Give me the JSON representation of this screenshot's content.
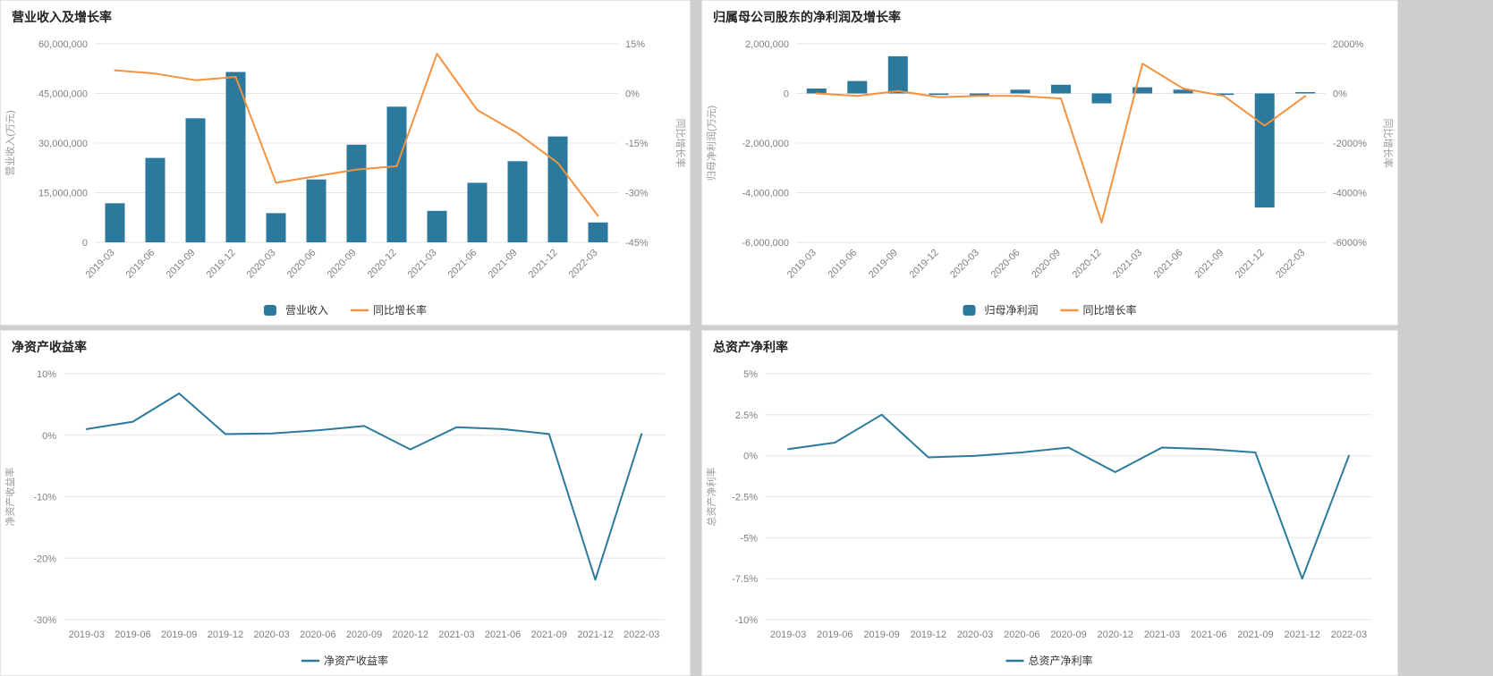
{
  "colors": {
    "bar_blue": "#2b7a9d",
    "line_orange": "#f5923f",
    "line_blue": "#2b7a9d",
    "grid": "#e6e6e6",
    "tick": "#7f7f7f",
    "axis_name": "#999999",
    "title": "#222222",
    "legend_text": "#333333",
    "panel_bg": "#ffffff",
    "page_bg": "#cfcfcf"
  },
  "chart_data": [
    {
      "type": "bar+line",
      "title": "营业收入及增长率",
      "legend_position": "bottom",
      "rotate_x_labels": true,
      "categories": [
        "2019-03",
        "2019-06",
        "2019-09",
        "2019-12",
        "2020-03",
        "2020-06",
        "2020-09",
        "2020-12",
        "2021-03",
        "2021-06",
        "2021-09",
        "2021-12",
        "2022-03"
      ],
      "left_axis": {
        "label": "营业收入(万元)",
        "min": 0,
        "max": 60000000,
        "tick_values": [
          60000000,
          45000000,
          30000000,
          15000000,
          0
        ],
        "tick_labels": [
          "60,000,000",
          "45,000,000",
          "30,000,000",
          "15,000,000",
          "0"
        ]
      },
      "right_axis": {
        "label": "同比增长率",
        "min": -45,
        "max": 15,
        "tick_values": [
          15,
          0,
          -15,
          -30,
          -45
        ],
        "tick_labels": [
          "15%",
          "0%",
          "-15%",
          "-30%",
          "-45%"
        ]
      },
      "series": [
        {
          "name": "营业收入",
          "type": "bar",
          "axis": "left",
          "color": "#2b7a9d",
          "values": [
            11800000,
            25500000,
            37500000,
            51500000,
            8800000,
            19000000,
            29500000,
            41000000,
            9500000,
            18000000,
            24500000,
            32000000,
            6000000
          ]
        },
        {
          "name": "同比增长率",
          "type": "line",
          "axis": "right",
          "color": "#f5923f",
          "values": [
            7,
            6,
            4,
            5,
            -27,
            -25,
            -23,
            -22,
            12,
            -5,
            -12,
            -21,
            -37
          ]
        }
      ]
    },
    {
      "type": "bar+line",
      "title": "归属母公司股东的净利润及增长率",
      "legend_position": "bottom",
      "rotate_x_labels": true,
      "categories": [
        "2019-03",
        "2019-06",
        "2019-09",
        "2019-12",
        "2020-03",
        "2020-06",
        "2020-09",
        "2020-12",
        "2021-03",
        "2021-06",
        "2021-09",
        "2021-12",
        "2022-03"
      ],
      "left_axis": {
        "label": "归母净利润(万元)",
        "min": -6000000,
        "max": 2000000,
        "tick_values": [
          2000000,
          0,
          -2000000,
          -4000000,
          -6000000
        ],
        "tick_labels": [
          "2,000,000",
          "0",
          "-2,000,000",
          "-4,000,000",
          "-6,000,000"
        ]
      },
      "right_axis": {
        "label": "同比增长率",
        "min": -6000,
        "max": 2000,
        "tick_values": [
          2000,
          0,
          -2000,
          -4000,
          -6000
        ],
        "tick_labels": [
          "2000%",
          "0%",
          "-2000%",
          "-4000%",
          "-6000%"
        ]
      },
      "series": [
        {
          "name": "归母净利润",
          "type": "bar",
          "axis": "left",
          "color": "#2b7a9d",
          "values": [
            200000,
            500000,
            1500000,
            -60000,
            -80000,
            150000,
            350000,
            -400000,
            250000,
            150000,
            -60000,
            -4600000,
            50000
          ]
        },
        {
          "name": "同比增长率",
          "type": "line",
          "axis": "right",
          "color": "#f5923f",
          "values": [
            0,
            -100,
            100,
            -150,
            -100,
            -100,
            -200,
            -5200,
            1200,
            200,
            -100,
            -1300,
            -100
          ]
        }
      ]
    },
    {
      "type": "line",
      "title": "净资产收益率",
      "legend_position": "bottom",
      "rotate_x_labels": false,
      "categories": [
        "2019-03",
        "2019-06",
        "2019-09",
        "2019-12",
        "2020-03",
        "2020-06",
        "2020-09",
        "2020-12",
        "2021-03",
        "2021-06",
        "2021-09",
        "2021-12",
        "2022-03"
      ],
      "left_axis": {
        "label": "净资产收益率",
        "min": -30,
        "max": 10,
        "tick_values": [
          10,
          0,
          -10,
          -20,
          -30
        ],
        "tick_labels": [
          "10%",
          "0%",
          "-10%",
          "-20%",
          "-30%"
        ]
      },
      "series": [
        {
          "name": "净资产收益率",
          "type": "line",
          "axis": "left",
          "color": "#2b7a9d",
          "values": [
            1,
            2.2,
            6.8,
            0.2,
            0.3,
            0.8,
            1.5,
            -2.3,
            1.3,
            1,
            0.2,
            -23.5,
            0.2
          ]
        }
      ]
    },
    {
      "type": "line",
      "title": "总资产净利率",
      "legend_position": "bottom",
      "rotate_x_labels": false,
      "categories": [
        "2019-03",
        "2019-06",
        "2019-09",
        "2019-12",
        "2020-03",
        "2020-06",
        "2020-09",
        "2020-12",
        "2021-03",
        "2021-06",
        "2021-09",
        "2021-12",
        "2022-03"
      ],
      "left_axis": {
        "label": "总资产净利率",
        "min": -10,
        "max": 5,
        "tick_values": [
          5,
          2.5,
          0,
          -2.5,
          -5,
          -7.5,
          -10
        ],
        "tick_labels": [
          "5%",
          "2.5%",
          "0%",
          "-2.5%",
          "-5%",
          "-7.5%",
          "-10%"
        ]
      },
      "series": [
        {
          "name": "总资产净利率",
          "type": "line",
          "axis": "left",
          "color": "#2b7a9d",
          "values": [
            0.4,
            0.8,
            2.5,
            -0.1,
            0,
            0.2,
            0.5,
            -1,
            0.5,
            0.4,
            0.2,
            -7.5,
            0
          ]
        }
      ]
    }
  ]
}
